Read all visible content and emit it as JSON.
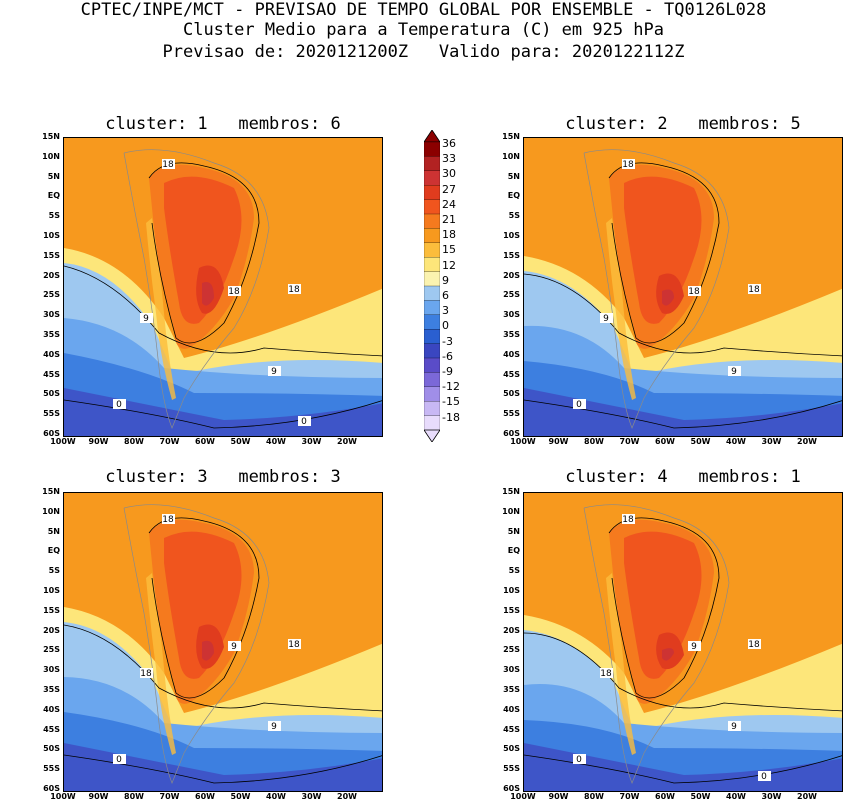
{
  "header": {
    "line1": "CPTEC/INPE/MCT - PREVISAO DE TEMPO GLOBAL POR ENSEMBLE - TQ0126L028",
    "line2": "Cluster Medio para a Temperatura (C) em 925 hPa",
    "line3": "Previsao de: 2020121200Z   Valido para: 2020122112Z"
  },
  "panels": [
    {
      "title": "cluster: 1   membros: 6"
    },
    {
      "title": "cluster: 2   membros: 5"
    },
    {
      "title": "cluster: 3   membros: 3"
    },
    {
      "title": "cluster: 4   membros: 1"
    }
  ],
  "lat_labels": [
    "15N",
    "10N",
    "5N",
    "EQ",
    "5S",
    "10S",
    "15S",
    "20S",
    "25S",
    "30S",
    "35S",
    "40S",
    "45S",
    "50S",
    "55S",
    "60S"
  ],
  "lon_labels": [
    "100W",
    "90W",
    "80W",
    "70W",
    "60W",
    "50W",
    "40W",
    "30W",
    "20W"
  ],
  "colorbar": {
    "levels": [
      "36",
      "33",
      "30",
      "27",
      "24",
      "21",
      "18",
      "15",
      "12",
      "9",
      "6",
      "3",
      "0",
      "-3",
      "-6",
      "-9",
      "-12",
      "-15",
      "-18"
    ],
    "colors": [
      "#8b0000",
      "#b22222",
      "#cd3333",
      "#e03c1e",
      "#f0551e",
      "#f57a1e",
      "#f7991e",
      "#fbbd3c",
      "#fde67a",
      "#fbf3b0",
      "#9ec8f0",
      "#6aa6ee",
      "#3d7fe0",
      "#2a5fd0",
      "#3a46c0",
      "#5a4cc8",
      "#7b68d8",
      "#a08ee8",
      "#c8b8f4",
      "#e8dcfc"
    ]
  },
  "contour_labels": {
    "p1": [
      "18",
      "18",
      "9",
      "18",
      "9",
      "0",
      "0"
    ],
    "p2": [
      "18",
      "18",
      "9",
      "18",
      "9",
      "0"
    ],
    "p3": [
      "18",
      "9",
      "18",
      "18",
      "9",
      "0"
    ],
    "p4": [
      "18",
      "9",
      "18",
      "18",
      "9",
      "0",
      "0"
    ]
  }
}
